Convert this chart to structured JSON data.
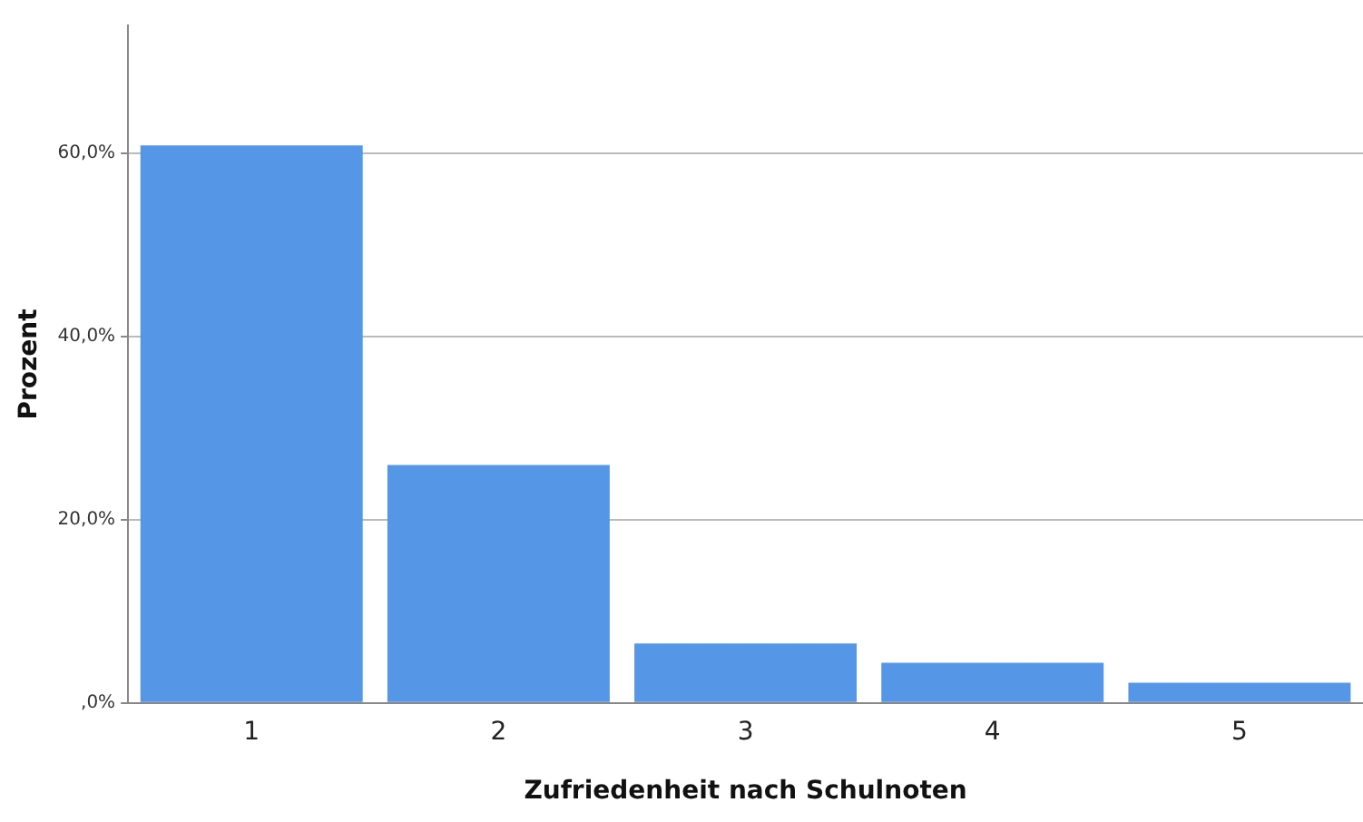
{
  "chart_data": {
    "type": "bar",
    "xlabel": "Zufriedenheit nach Schulnoten",
    "ylabel": "Prozent",
    "categories": [
      "1",
      "2",
      "3",
      "4",
      "5"
    ],
    "values": [
      60.9,
      26.0,
      6.5,
      4.4,
      2.2
    ],
    "color": "#5596e6",
    "ylim": [
      0,
      74
    ],
    "yticks": [
      {
        "value": 0,
        "label": ",0%"
      },
      {
        "value": 20,
        "label": "20,0%"
      },
      {
        "value": 40,
        "label": "40,0%"
      },
      {
        "value": 60,
        "label": "60,0%"
      }
    ],
    "grid": "y",
    "legend": false
  }
}
